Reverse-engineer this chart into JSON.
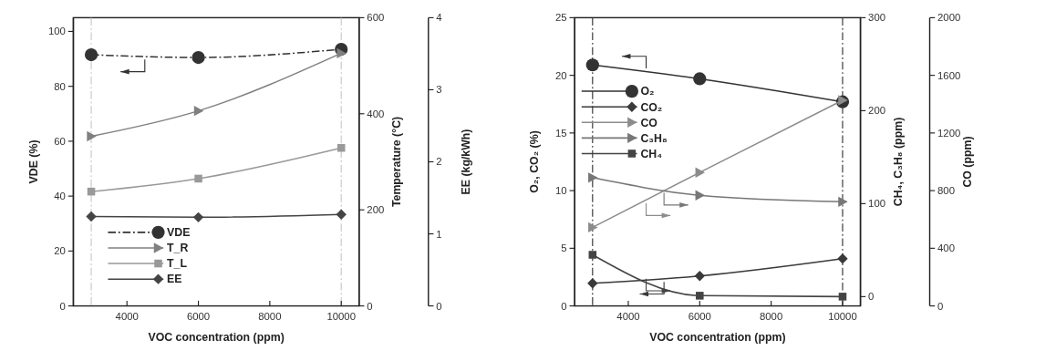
{
  "chart_data": [
    {
      "type": "line",
      "xlabel": "VOC concentration (ppm)",
      "ylabel": "VDE (%)",
      "y2label": "Temperature (°C)",
      "y3label": "EE (kg/kWh)",
      "x": [
        3000,
        6000,
        10000
      ],
      "xlim": [
        2500,
        10500
      ],
      "xticks": [
        4000,
        6000,
        8000,
        10000
      ],
      "ylim": [
        0,
        105
      ],
      "yticks": [
        0,
        20,
        40,
        60,
        80,
        100
      ],
      "y2lim": [
        0,
        600
      ],
      "y2ticks": [
        0,
        200,
        400,
        600
      ],
      "y3lim": [
        0,
        4
      ],
      "y3ticks": [
        0,
        1,
        2,
        3,
        4
      ],
      "legend": "bottom left",
      "ref_lines": [
        {
          "axis": "x",
          "value": 3000,
          "color": "#c8c8c8",
          "line_style": "dashed"
        },
        {
          "axis": "x",
          "value": 10000,
          "color": "#c8c8c8",
          "line_style": "dashed"
        }
      ],
      "series": [
        {
          "name": "VDE",
          "color": "#333333",
          "values": [
            91.5,
            90.5,
            93.5
          ],
          "marker": "circle",
          "line_style": "dashed"
        },
        {
          "name": "T_R",
          "color": "#808080",
          "values": [
            353,
            406,
            526
          ],
          "axis": "y2",
          "marker": "triangle",
          "line_style": "solid"
        },
        {
          "name": "T_L",
          "color": "#999999",
          "values": [
            238,
            265,
            329
          ],
          "axis": "y2",
          "marker": "square",
          "line_style": "solid"
        },
        {
          "name": "EE",
          "color": "#444444",
          "values": [
            1.24,
            1.23,
            1.27
          ],
          "axis": "y3",
          "marker": "diamond",
          "line_style": "solid"
        }
      ]
    },
    {
      "type": "line",
      "xlabel": "VOC concentration (ppm)",
      "ylabel": "O₂, CO₂ (%)",
      "y2label": "CH₄, C₃H₈ (ppm)",
      "y3label": "CO (ppm)",
      "x": [
        3000,
        6000,
        10000
      ],
      "xlim": [
        2500,
        10500
      ],
      "xticks": [
        4000,
        6000,
        8000,
        10000
      ],
      "ylim": [
        0,
        25
      ],
      "yticks": [
        0,
        5,
        10,
        15,
        20,
        25
      ],
      "y2lim": [
        -10,
        300
      ],
      "y2ticks": [
        0,
        100,
        200,
        300
      ],
      "y3lim": [
        0,
        2000
      ],
      "y3ticks": [
        0,
        400,
        800,
        1200,
        1600,
        2000
      ],
      "legend": "top left",
      "ref_lines": [
        {
          "axis": "x",
          "value": 3000,
          "color": "#333333",
          "line_style": "dashed"
        },
        {
          "axis": "x",
          "value": 10000,
          "color": "#333333",
          "line_style": "dashed"
        }
      ],
      "series": [
        {
          "name": "O₂",
          "color": "#333333",
          "values": [
            20.9,
            19.7,
            17.7
          ],
          "marker": "circle",
          "line_style": "solid"
        },
        {
          "name": "CO₂",
          "color": "#3a3a3a",
          "values": [
            1.96,
            2.6,
            4.1
          ],
          "marker": "diamond",
          "line_style": "solid"
        },
        {
          "name": "CO",
          "color": "#8c8c8c",
          "values": [
            545,
            926,
            1427
          ],
          "axis": "y3",
          "marker": "triangle",
          "line_style": "solid"
        },
        {
          "name": "C₃H₈",
          "color": "#777777",
          "values": [
            128,
            109,
            102
          ],
          "axis": "y2",
          "marker": "triangle",
          "line_style": "solid"
        },
        {
          "name": "CH₄",
          "color": "#444444",
          "values": [
            45,
            1,
            0
          ],
          "axis": "y2",
          "marker": "square",
          "line_style": "solid"
        }
      ]
    }
  ]
}
